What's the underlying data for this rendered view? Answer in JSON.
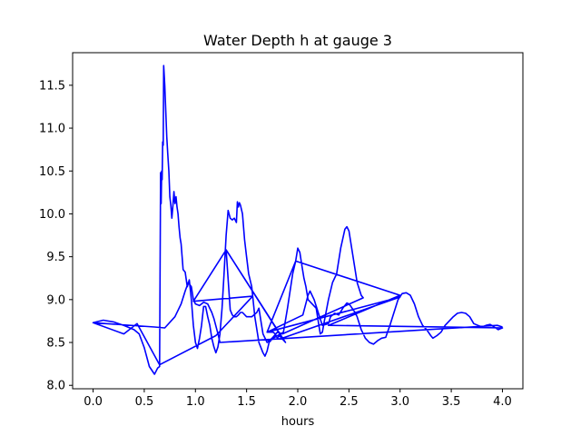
{
  "chart_data": {
    "type": "line",
    "title": "Water Depth h at gauge 3",
    "xlabel": "hours",
    "ylabel": "",
    "xlim": [
      -0.2,
      4.2
    ],
    "ylim": [
      7.96,
      11.88
    ],
    "xticks": [
      0.0,
      0.5,
      1.0,
      1.5,
      2.0,
      2.5,
      3.0,
      3.5,
      4.0
    ],
    "xtick_labels": [
      "0.0",
      "0.5",
      "1.0",
      "1.5",
      "2.0",
      "2.5",
      "3.0",
      "3.5",
      "4.0"
    ],
    "yticks": [
      8.0,
      8.5,
      9.0,
      9.5,
      10.0,
      10.5,
      11.0,
      11.5
    ],
    "ytick_labels": [
      "8.0",
      "8.5",
      "9.0",
      "9.5",
      "10.0",
      "10.5",
      "11.0",
      "11.5"
    ],
    "grid": false,
    "series_color": "#0000ff",
    "series": [
      {
        "points": [
          [
            0.0,
            8.73
          ],
          [
            0.1,
            8.76
          ],
          [
            0.2,
            8.74
          ],
          [
            0.3,
            8.7
          ],
          [
            0.4,
            8.65
          ],
          [
            0.45,
            8.6
          ],
          [
            0.5,
            8.44
          ],
          [
            0.55,
            8.22
          ],
          [
            0.6,
            8.13
          ],
          [
            0.63,
            8.2
          ],
          [
            0.65,
            8.22
          ],
          [
            0.66,
            10.48
          ],
          [
            0.665,
            10.12
          ],
          [
            0.67,
            10.5
          ],
          [
            0.675,
            10.4
          ],
          [
            0.68,
            10.84
          ],
          [
            0.685,
            10.8
          ],
          [
            0.69,
            11.73
          ],
          [
            0.7,
            11.5
          ],
          [
            0.71,
            11.2
          ],
          [
            0.72,
            10.9
          ],
          [
            0.73,
            10.7
          ],
          [
            0.74,
            10.5
          ],
          [
            0.75,
            10.2
          ],
          [
            0.76,
            10.1
          ],
          [
            0.77,
            9.95
          ],
          [
            0.78,
            10.1
          ],
          [
            0.79,
            10.26
          ],
          [
            0.8,
            10.12
          ],
          [
            0.81,
            10.2
          ],
          [
            0.82,
            10.08
          ],
          [
            0.83,
            10.0
          ],
          [
            0.84,
            9.85
          ],
          [
            0.85,
            9.72
          ],
          [
            0.86,
            9.65
          ],
          [
            0.87,
            9.5
          ],
          [
            0.88,
            9.35
          ],
          [
            0.9,
            9.32
          ],
          [
            0.92,
            9.15
          ],
          [
            0.94,
            9.23
          ],
          [
            0.96,
            9.0
          ],
          [
            0.98,
            8.7
          ],
          [
            1.0,
            8.5
          ],
          [
            1.02,
            8.43
          ],
          [
            1.04,
            8.55
          ],
          [
            1.06,
            8.7
          ],
          [
            1.08,
            8.92
          ],
          [
            1.1,
            8.92
          ],
          [
            1.12,
            8.8
          ],
          [
            1.14,
            8.7
          ],
          [
            1.16,
            8.55
          ],
          [
            1.18,
            8.45
          ],
          [
            1.2,
            8.38
          ],
          [
            1.22,
            8.45
          ],
          [
            1.24,
            8.6
          ],
          [
            1.26,
            8.9
          ],
          [
            1.28,
            9.3
          ],
          [
            1.3,
            9.75
          ],
          [
            1.32,
            10.04
          ],
          [
            1.34,
            9.95
          ],
          [
            1.36,
            9.93
          ],
          [
            1.38,
            9.95
          ],
          [
            1.4,
            9.9
          ],
          [
            1.41,
            10.14
          ],
          [
            1.42,
            10.08
          ],
          [
            1.43,
            10.13
          ],
          [
            1.44,
            10.1
          ],
          [
            1.46,
            10.0
          ],
          [
            1.48,
            9.7
          ],
          [
            1.5,
            9.5
          ],
          [
            1.52,
            9.3
          ],
          [
            1.55,
            9.15
          ],
          [
            1.58,
            8.8
          ],
          [
            1.62,
            8.5
          ],
          [
            1.66,
            8.38
          ],
          [
            1.68,
            8.34
          ],
          [
            1.7,
            8.4
          ],
          [
            1.72,
            8.5
          ],
          [
            1.76,
            8.55
          ],
          [
            1.86,
            8.62
          ],
          [
            1.9,
            8.9
          ],
          [
            1.95,
            9.3
          ],
          [
            1.98,
            9.45
          ],
          [
            2.0,
            9.6
          ],
          [
            2.02,
            9.55
          ],
          [
            2.04,
            9.4
          ],
          [
            2.06,
            9.25
          ],
          [
            2.08,
            9.15
          ],
          [
            2.1,
            9.0
          ],
          [
            2.14,
            8.95
          ],
          [
            2.18,
            8.9
          ],
          [
            2.2,
            8.75
          ],
          [
            2.22,
            8.6
          ],
          [
            2.24,
            8.62
          ],
          [
            2.26,
            8.75
          ],
          [
            2.3,
            9.0
          ],
          [
            2.34,
            9.2
          ],
          [
            2.38,
            9.3
          ],
          [
            2.42,
            9.6
          ],
          [
            2.46,
            9.82
          ],
          [
            2.48,
            9.85
          ],
          [
            2.5,
            9.8
          ],
          [
            2.54,
            9.5
          ],
          [
            2.58,
            9.2
          ],
          [
            2.62,
            9.05
          ],
          [
            2.64,
            9.02
          ],
          [
            1.85,
            8.6
          ],
          [
            1.8,
            8.62
          ],
          [
            1.75,
            8.55
          ],
          [
            1.7,
            8.5
          ],
          [
            1.66,
            8.6
          ],
          [
            1.64,
            8.75
          ],
          [
            1.62,
            8.9
          ],
          [
            1.6,
            8.85
          ],
          [
            1.55,
            8.8
          ],
          [
            1.5,
            8.8
          ],
          [
            1.46,
            8.85
          ],
          [
            1.44,
            8.85
          ],
          [
            1.42,
            8.82
          ],
          [
            1.4,
            8.8
          ],
          [
            1.38,
            8.8
          ],
          [
            1.36,
            8.82
          ],
          [
            1.34,
            8.88
          ],
          [
            1.3,
            9.58
          ],
          [
            1.88,
            8.5
          ],
          [
            1.82,
            8.58
          ],
          [
            1.8,
            8.55
          ],
          [
            1.78,
            8.6
          ],
          [
            1.76,
            8.62
          ],
          [
            1.7,
            8.62
          ],
          [
            2.05,
            8.82
          ],
          [
            2.1,
            9.05
          ],
          [
            2.12,
            9.1
          ],
          [
            2.16,
            9.0
          ],
          [
            2.2,
            8.85
          ],
          [
            2.24,
            8.7
          ],
          [
            2.3,
            8.72
          ],
          [
            2.32,
            8.8
          ],
          [
            2.36,
            8.84
          ],
          [
            2.4,
            8.82
          ],
          [
            2.44,
            8.9
          ],
          [
            2.48,
            8.96
          ],
          [
            2.5,
            8.95
          ],
          [
            2.52,
            8.92
          ],
          [
            2.56,
            8.85
          ],
          [
            2.58,
            8.8
          ],
          [
            2.62,
            8.65
          ],
          [
            2.66,
            8.55
          ],
          [
            2.7,
            8.5
          ],
          [
            2.74,
            8.48
          ],
          [
            2.78,
            8.52
          ],
          [
            2.82,
            8.55
          ],
          [
            2.86,
            8.56
          ],
          [
            2.9,
            8.7
          ],
          [
            2.94,
            8.85
          ],
          [
            2.98,
            9.0
          ],
          [
            3.02,
            9.07
          ],
          [
            3.06,
            9.08
          ],
          [
            3.1,
            9.05
          ],
          [
            3.14,
            8.95
          ],
          [
            3.18,
            8.8
          ],
          [
            3.22,
            8.7
          ],
          [
            3.26,
            8.65
          ],
          [
            3.3,
            8.58
          ],
          [
            3.32,
            8.55
          ],
          [
            3.36,
            8.58
          ],
          [
            3.4,
            8.62
          ],
          [
            3.44,
            8.7
          ],
          [
            3.48,
            8.75
          ],
          [
            3.52,
            8.8
          ],
          [
            3.56,
            8.84
          ],
          [
            3.6,
            8.85
          ],
          [
            3.64,
            8.84
          ],
          [
            3.68,
            8.8
          ],
          [
            3.72,
            8.72
          ],
          [
            3.76,
            8.7
          ],
          [
            3.8,
            8.68
          ],
          [
            3.84,
            8.7
          ],
          [
            3.88,
            8.71
          ],
          [
            3.92,
            8.68
          ],
          [
            3.96,
            8.65
          ],
          [
            3.98,
            8.66
          ],
          [
            4.0,
            8.67
          ],
          [
            2.3,
            8.7
          ],
          [
            3.0,
            9.05
          ],
          [
            1.98,
            9.45
          ],
          [
            1.7,
            8.62
          ],
          [
            3.0,
            9.03
          ],
          [
            1.85,
            8.55
          ],
          [
            1.3,
            9.58
          ],
          [
            0.98,
            8.98
          ],
          [
            1.56,
            9.04
          ],
          [
            1.2,
            8.58
          ],
          [
            0.65,
            8.24
          ],
          [
            0.43,
            8.72
          ],
          [
            0.3,
            8.6
          ],
          [
            0.0,
            8.73
          ],
          [
            0.6,
            8.68
          ],
          [
            0.7,
            8.67
          ],
          [
            0.8,
            8.8
          ],
          [
            0.86,
            8.95
          ],
          [
            0.9,
            9.1
          ],
          [
            0.93,
            9.2
          ],
          [
            0.96,
            9.15
          ],
          [
            0.98,
            9.0
          ],
          [
            1.0,
            8.95
          ],
          [
            1.04,
            8.93
          ],
          [
            1.08,
            8.97
          ],
          [
            1.12,
            8.95
          ],
          [
            1.16,
            8.85
          ],
          [
            1.18,
            8.78
          ],
          [
            1.22,
            8.6
          ],
          [
            1.24,
            8.5
          ],
          [
            3.95,
            8.7
          ],
          [
            4.0,
            8.68
          ]
        ]
      }
    ]
  }
}
